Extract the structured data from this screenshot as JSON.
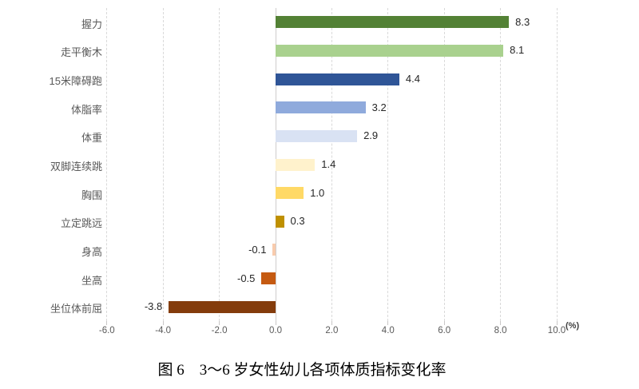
{
  "chart_data": {
    "type": "bar",
    "orientation": "horizontal",
    "title": "图 6　3～6 岁女性幼儿各项体质指标变化率",
    "axis_unit": "(%)",
    "categories": [
      "握力",
      "走平衡木",
      "15米障碍跑",
      "体脂率",
      "体重",
      "双脚连续跳",
      "胸围",
      "立定跳远",
      "身高",
      "坐高",
      "坐位体前屈"
    ],
    "values": [
      8.3,
      8.1,
      4.4,
      3.2,
      2.9,
      1.4,
      1.0,
      0.3,
      -0.1,
      -0.5,
      -3.8
    ],
    "value_labels": [
      "8.3",
      "8.1",
      "4.4",
      "3.2",
      "2.9",
      "1.4",
      "1.0",
      "0.3",
      "-0.1",
      "-0.5",
      "-3.8"
    ],
    "bar_colors": [
      "#538135",
      "#A9D18E",
      "#2F5597",
      "#8FAADC",
      "#D9E2F3",
      "#FFF2CC",
      "#FFD966",
      "#BF9000",
      "#F8CBAD",
      "#C55A11",
      "#843C0C"
    ],
    "x_tick_values": [
      -6,
      -4,
      -2,
      0,
      2,
      4,
      6,
      8,
      10
    ],
    "x_tick_labels": [
      "-6.0",
      "-4.0",
      "-2.0",
      "0.0",
      "2.0",
      "4.0",
      "6.0",
      "8.0",
      "10.0"
    ],
    "xlim": [
      -6,
      10
    ],
    "grid": "vertical-dashed",
    "legend_position": "none",
    "styles": {
      "grid_color": "#D9D9D9",
      "zero_line_color": "#CFCDCD",
      "tick_label_color": "#595959",
      "category_label_color": "#595959",
      "value_label_color": "#262626",
      "title_color": "#000000",
      "background": "#FFFFFF"
    }
  }
}
